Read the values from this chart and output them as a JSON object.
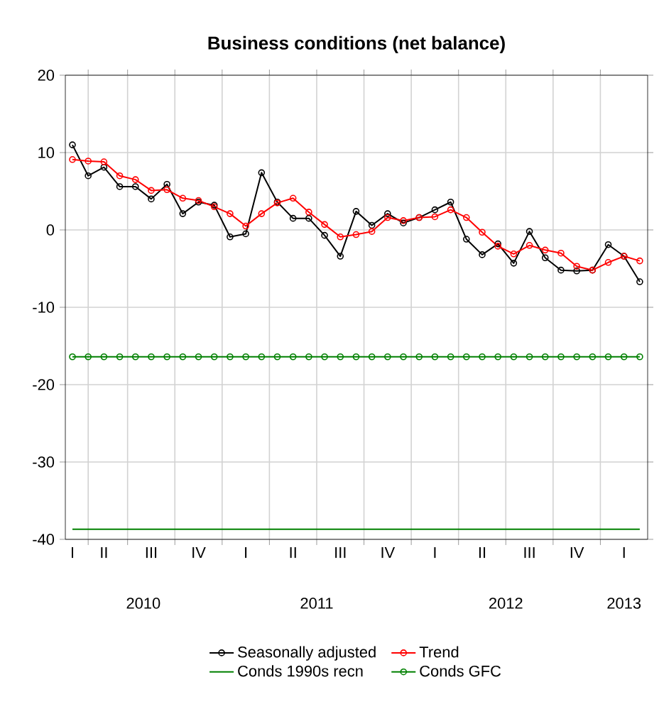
{
  "chart_data": {
    "type": "line",
    "title": "Business conditions (net balance)",
    "categories": [
      "I",
      null,
      "II",
      null,
      null,
      "III",
      null,
      null,
      "IV",
      null,
      null,
      "I",
      null,
      null,
      "II",
      null,
      null,
      "III",
      null,
      null,
      "IV",
      null,
      null,
      "I",
      null,
      null,
      "II",
      null,
      null,
      "III",
      null,
      null,
      "IV",
      null,
      null,
      "I",
      null
    ],
    "series": [
      {
        "name": "Seasonally adjusted",
        "color": "#000000",
        "values": [
          11.0,
          7.0,
          8.1,
          5.6,
          5.6,
          4.0,
          5.9,
          2.1,
          3.6,
          3.2,
          -0.9,
          -0.5,
          7.4,
          3.6,
          1.5,
          1.5,
          -0.7,
          -3.4,
          2.4,
          0.6,
          2.1,
          0.9,
          1.6,
          2.6,
          3.6,
          -1.2,
          -3.2,
          -1.8,
          -4.3,
          -0.2,
          -3.6,
          -5.2,
          -5.3,
          -5.2,
          -1.9,
          -3.4,
          -6.7
        ]
      },
      {
        "name": "Trend",
        "color": "#ff0000",
        "values": [
          9.1,
          8.9,
          8.8,
          7.0,
          6.5,
          5.1,
          5.2,
          4.1,
          3.8,
          3.0,
          2.1,
          0.5,
          2.1,
          3.5,
          4.1,
          2.3,
          0.7,
          -0.9,
          -0.6,
          -0.2,
          1.6,
          1.2,
          1.6,
          1.7,
          2.6,
          1.6,
          -0.3,
          -2.1,
          -3.1,
          -2.0,
          -2.6,
          -3.0,
          -4.7,
          -5.2,
          -4.2,
          -3.4,
          -4.0
        ]
      },
      {
        "name": "Conds 1990s recn",
        "color": "#008000",
        "marker": "none",
        "values": [
          -38.7,
          -38.7,
          -38.7,
          -38.7,
          -38.7,
          -38.7,
          -38.7,
          -38.7,
          -38.7,
          -38.7,
          -38.7,
          -38.7,
          -38.7,
          -38.7,
          -38.7,
          -38.7,
          -38.7,
          -38.7,
          -38.7,
          -38.7,
          -38.7,
          -38.7,
          -38.7,
          -38.7,
          -38.7,
          -38.7,
          -38.7,
          -38.7,
          -38.7,
          -38.7,
          -38.7,
          -38.7,
          -38.7,
          -38.7,
          -38.7,
          -38.7,
          -38.7
        ]
      },
      {
        "name": "Conds GFC",
        "color": "#008000",
        "values": [
          -16.4,
          -16.4,
          -16.4,
          -16.4,
          -16.4,
          -16.4,
          -16.4,
          -16.4,
          -16.4,
          -16.4,
          -16.4,
          -16.4,
          -16.4,
          -16.4,
          -16.4,
          -16.4,
          -16.4,
          -16.4,
          -16.4,
          -16.4,
          -16.4,
          -16.4,
          -16.4,
          -16.4,
          -16.4,
          -16.4,
          -16.4,
          -16.4,
          -16.4,
          -16.4,
          -16.4,
          -16.4,
          -16.4,
          -16.4,
          -16.4,
          -16.4,
          -16.4
        ]
      }
    ],
    "annotations": [
      "2010",
      "2011",
      "2012",
      "2013"
    ],
    "ylim": [
      -40,
      20
    ],
    "yticks": [
      -40,
      -30,
      -20,
      -10,
      0,
      10,
      20
    ],
    "grid": true,
    "legend": "bottom",
    "marker": "circle",
    "line_style": "solid"
  }
}
